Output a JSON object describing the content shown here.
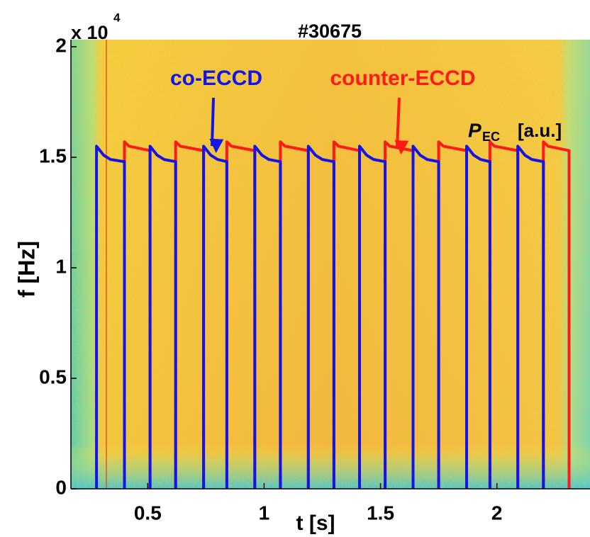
{
  "chart_data": {
    "type": "line",
    "title": "#30675",
    "x_label": "t [s]",
    "y_label": "f [Hz]",
    "y_multiplier": {
      "base": "x 10",
      "exponent": "4"
    },
    "power_label": {
      "symbol": "P",
      "subscript": "EC",
      "unit": "[a.u.]"
    },
    "annotations": [
      {
        "text": "co-ECCD",
        "color": "#1414e6"
      },
      {
        "text": "counter-ECCD",
        "color": "#ff1a1a"
      }
    ],
    "xlim": [
      0.17,
      2.4
    ],
    "ylim": [
      0,
      2
    ],
    "xticks": [
      0.5,
      1,
      1.5,
      2
    ],
    "yticks": [
      0,
      0.5,
      1,
      1.5,
      2
    ],
    "series": [
      {
        "name": "counter-ECCD",
        "color": "#ff1a1a",
        "x": [
          0.4,
          0.4,
          0.42,
          0.51,
          0.51,
          0.51,
          0.62,
          0.62,
          0.64,
          0.74,
          0.74,
          0.74,
          0.84,
          0.84,
          0.86,
          0.96,
          0.96,
          0.96,
          1.07,
          1.07,
          1.09,
          1.19,
          1.19,
          1.19,
          1.3,
          1.3,
          1.32,
          1.41,
          1.41,
          1.41,
          1.52,
          1.52,
          1.54,
          1.64,
          1.64,
          1.64,
          1.75,
          1.75,
          1.77,
          1.87,
          1.87,
          1.87,
          1.97,
          1.97,
          1.99,
          2.09,
          2.09,
          2.09,
          2.2,
          2.2,
          2.22,
          2.31,
          2.31
        ],
        "values": [
          0,
          1.57,
          1.55,
          1.53,
          0,
          null,
          0,
          1.57,
          1.55,
          1.53,
          0,
          null,
          0,
          1.57,
          1.55,
          1.53,
          0,
          null,
          0,
          1.57,
          1.55,
          1.53,
          0,
          null,
          0,
          1.57,
          1.55,
          1.53,
          0,
          null,
          0,
          1.57,
          1.55,
          1.53,
          0,
          null,
          0,
          1.57,
          1.55,
          1.53,
          0,
          null,
          0,
          1.57,
          1.55,
          1.53,
          0,
          null,
          0,
          1.57,
          1.55,
          1.53,
          0
        ]
      },
      {
        "name": "co-ECCD",
        "color": "#1414e6",
        "x": [
          0.28,
          0.28,
          0.31,
          0.34,
          0.4,
          0.4,
          0.4,
          0.51,
          0.51,
          0.54,
          0.57,
          0.62,
          0.62,
          0.62,
          0.74,
          0.74,
          0.77,
          0.8,
          0.84,
          0.84,
          0.84,
          0.96,
          0.96,
          0.99,
          1.02,
          1.07,
          1.07,
          1.07,
          1.19,
          1.19,
          1.22,
          1.25,
          1.3,
          1.3,
          1.3,
          1.41,
          1.41,
          1.44,
          1.47,
          1.52,
          1.52,
          1.52,
          1.64,
          1.64,
          1.67,
          1.7,
          1.75,
          1.75,
          1.75,
          1.87,
          1.87,
          1.9,
          1.93,
          1.97,
          1.97,
          1.97,
          2.09,
          2.09,
          2.12,
          2.15,
          2.2,
          2.2
        ],
        "values": [
          0,
          1.55,
          1.51,
          1.49,
          1.48,
          0,
          null,
          0,
          1.55,
          1.51,
          1.49,
          1.48,
          0,
          null,
          0,
          1.55,
          1.51,
          1.49,
          1.48,
          0,
          null,
          0,
          1.55,
          1.51,
          1.49,
          1.48,
          0,
          null,
          0,
          1.55,
          1.51,
          1.49,
          1.48,
          0,
          null,
          0,
          1.55,
          1.51,
          1.49,
          1.48,
          0,
          null,
          0,
          1.55,
          1.51,
          1.49,
          1.48,
          0,
          null,
          0,
          1.55,
          1.51,
          1.49,
          1.48,
          0,
          null,
          0,
          1.55,
          1.51,
          1.49,
          1.48,
          0
        ]
      }
    ]
  }
}
